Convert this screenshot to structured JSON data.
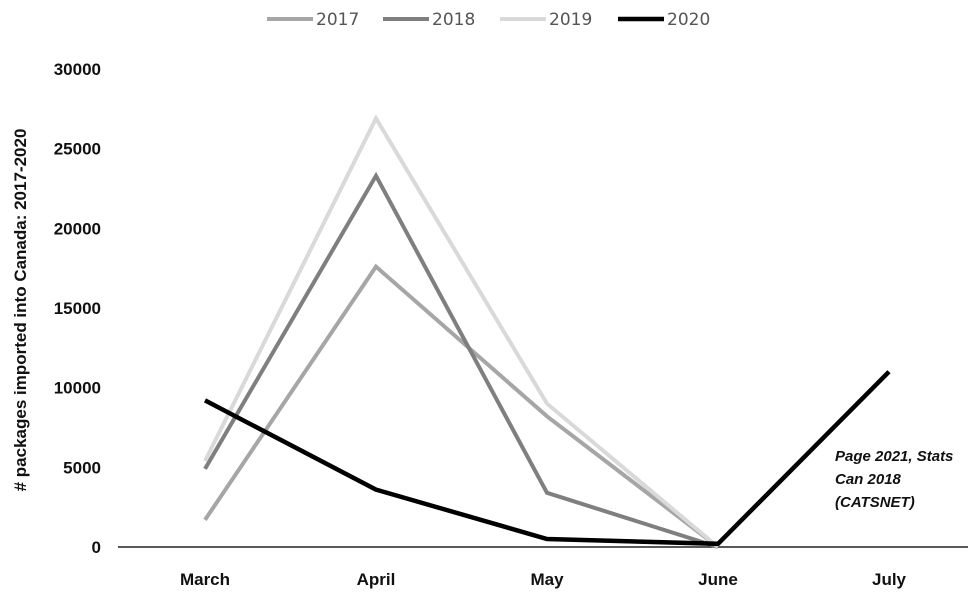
{
  "chart_data": {
    "type": "line",
    "categories": [
      "March",
      "April",
      "May",
      "June",
      "July"
    ],
    "series": [
      {
        "name": "2017",
        "color": "#a6a6a6",
        "values": [
          1700,
          17600,
          8200,
          0,
          null
        ]
      },
      {
        "name": "2018",
        "color": "#7f7f7f",
        "values": [
          4900,
          23300,
          3400,
          0,
          null
        ]
      },
      {
        "name": "2019",
        "color": "#d9d9d9",
        "values": [
          5400,
          26900,
          9000,
          0,
          null
        ]
      },
      {
        "name": "2020",
        "color": "#000000",
        "values": [
          9200,
          3600,
          500,
          200,
          11000
        ]
      }
    ],
    "title": "",
    "xlabel": "",
    "ylabel": "# packages imported into Canada: 2017-2020",
    "ylim": [
      0,
      30000
    ],
    "yticks": [
      "0",
      "5000",
      "10000",
      "15000",
      "20000",
      "25000",
      "30000"
    ],
    "grid": false,
    "legend_position": "top",
    "annotation": [
      "Page 2021, Stats",
      "Can 2018",
      "(CATSNET)"
    ]
  }
}
